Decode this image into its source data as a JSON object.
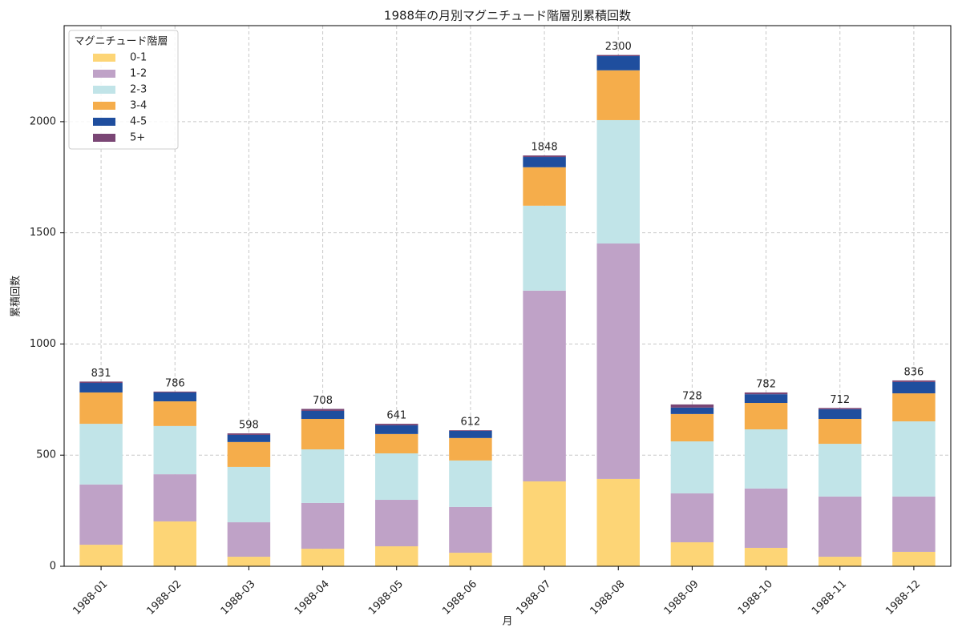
{
  "chart_data": {
    "type": "stacked_bar",
    "title": "1988年の月別マグニチュード階層別累積回数",
    "x_label": "月",
    "y_label": "累積回数",
    "categories": [
      "1988-01",
      "1988-02",
      "1988-03",
      "1988-04",
      "1988-05",
      "1988-06",
      "1988-07",
      "1988-08",
      "1988-09",
      "1988-10",
      "1988-11",
      "1988-12"
    ],
    "series": [
      {
        "name": "0-1",
        "color": "#fdd576",
        "values": [
          97,
          202,
          43,
          79,
          90,
          61,
          382,
          393,
          108,
          83,
          43,
          65
        ]
      },
      {
        "name": "1-2",
        "color": "#bfa2c7",
        "values": [
          271,
          212,
          155,
          206,
          209,
          206,
          858,
          1059,
          220,
          267,
          271,
          249
        ]
      },
      {
        "name": "2-3",
        "color": "#c1e4e8",
        "values": [
          273,
          217,
          249,
          241,
          209,
          209,
          382,
          555,
          234,
          266,
          237,
          338
        ]
      },
      {
        "name": "3-4",
        "color": "#f5ad4b",
        "values": [
          141,
          111,
          112,
          137,
          87,
          101,
          173,
          224,
          123,
          119,
          112,
          126
        ]
      },
      {
        "name": "4-5",
        "color": "#1f4e9e",
        "values": [
          43,
          40,
          32,
          36,
          39,
          32,
          46,
          64,
          29,
          39,
          43,
          51
        ]
      },
      {
        "name": "5+",
        "color": "#7a4675",
        "values": [
          6,
          4,
          7,
          9,
          7,
          3,
          7,
          5,
          14,
          8,
          6,
          7
        ]
      }
    ],
    "totals": [
      831,
      786,
      598,
      708,
      641,
      612,
      1848,
      2300,
      728,
      782,
      712,
      836
    ],
    "legend_title": "マグニチュード階層",
    "legend": "upper left",
    "ylim": [
      0,
      2432
    ],
    "yticks": [
      0,
      500,
      1000,
      1500,
      2000
    ],
    "grid": true
  }
}
